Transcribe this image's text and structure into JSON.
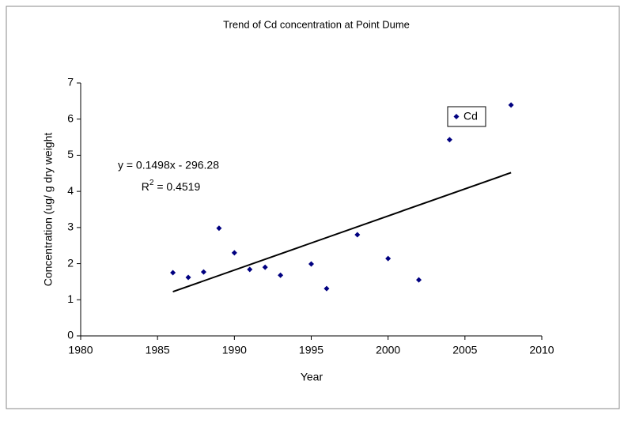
{
  "chart_data": {
    "type": "scatter",
    "title": "Trend of Cd concentration at Point Dume",
    "x_label": "Year",
    "y_label": "Concentration (ug/ g dry weight",
    "series": [
      {
        "name": "Cd",
        "color": "#000080",
        "x": [
          1986,
          1987,
          1988,
          1989,
          1990,
          1991,
          1992,
          1993,
          1995,
          1996,
          1998,
          2000,
          2002,
          2004,
          2008
        ],
        "values": [
          1.75,
          1.62,
          1.77,
          2.98,
          2.3,
          1.84,
          1.9,
          1.68,
          1.99,
          1.31,
          2.8,
          2.14,
          1.55,
          5.43,
          6.39
        ]
      }
    ],
    "trendline": {
      "slope": 0.1498,
      "intercept": -296.28,
      "x": [
        1986,
        2008
      ],
      "color": "#000000",
      "equation": "y = 0.1498x - 296.28",
      "r2_symbol": "R",
      "r2_exponent": "2",
      "r2_text": " = 0.4519"
    },
    "xlim": [
      1980,
      2010
    ],
    "xticks": [
      1980,
      1985,
      1990,
      1995,
      2000,
      2005,
      2010
    ],
    "ylim": [
      0,
      7
    ],
    "yticks": [
      0,
      1,
      2,
      3,
      4,
      5,
      6,
      7
    ],
    "grid": false,
    "legend": "upper right"
  }
}
